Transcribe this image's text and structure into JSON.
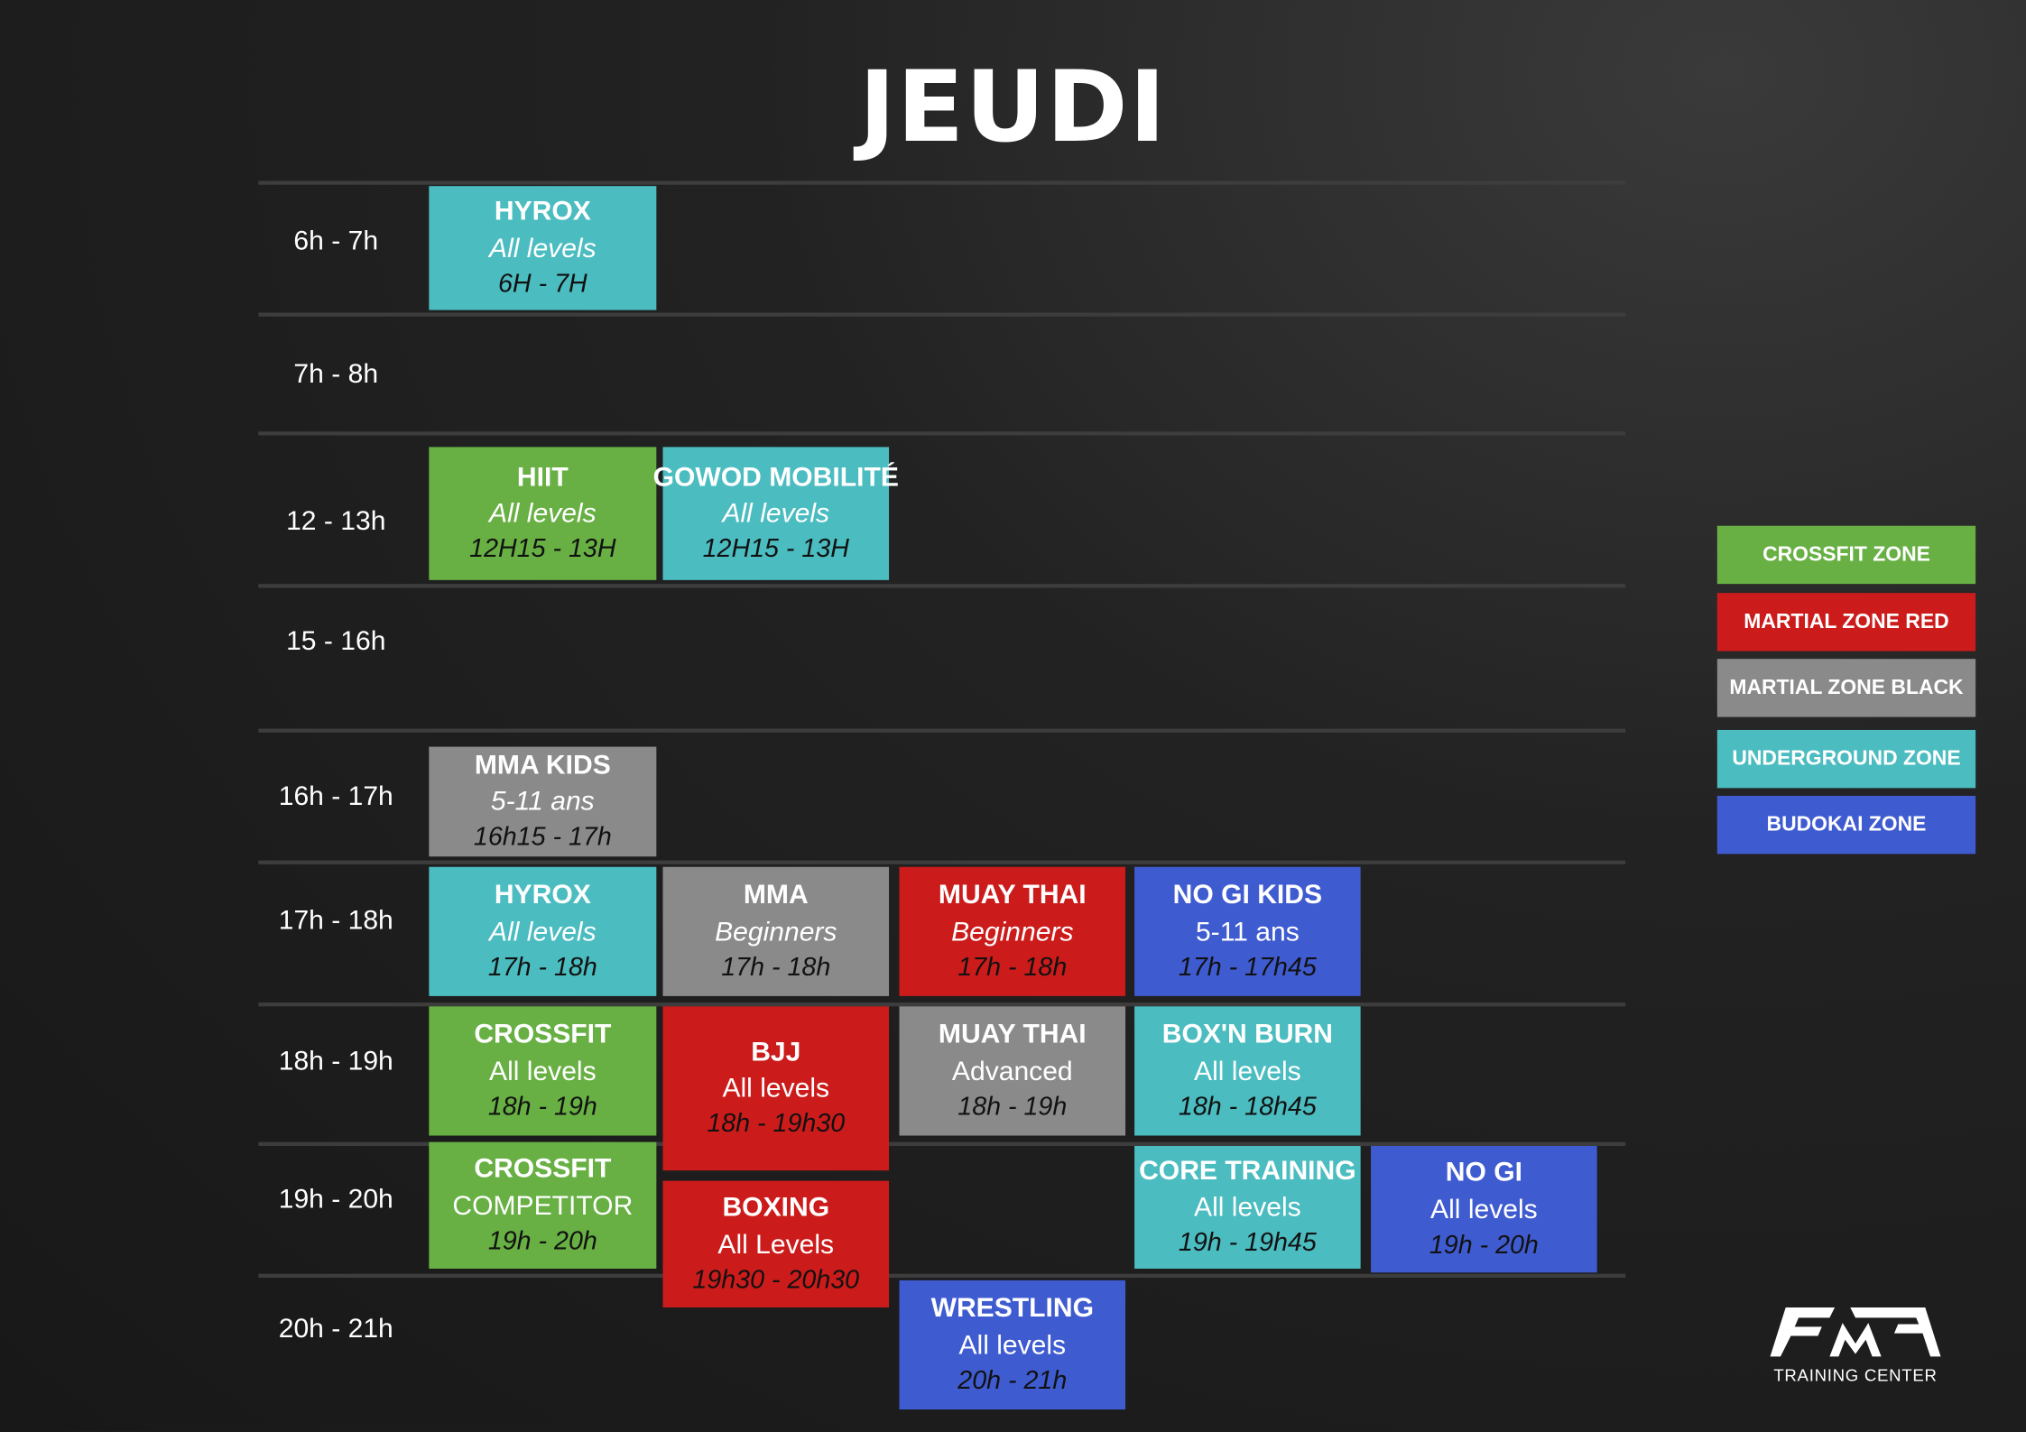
{
  "title": "JEUDI",
  "colors": {
    "crossfit": "#68b044",
    "red": "#cc1b1b",
    "black": "#8a8a8a",
    "underground": "#4bbcc0",
    "budokai": "#3f5bd0"
  },
  "rows": [
    "6h - 7h",
    "7h - 8h",
    "12 - 13h",
    "15 - 16h",
    "16h - 17h",
    "17h - 18h",
    "18h - 19h",
    "19h - 20h",
    "20h - 21h"
  ],
  "sessions": [
    {
      "name": "HYROX",
      "level": "All levels",
      "time": "6H - 7H",
      "zone": "underground",
      "level_italic": true
    },
    {
      "name": "HIIT",
      "level": "All levels",
      "time": "12H15 - 13H",
      "zone": "crossfit",
      "level_italic": true
    },
    {
      "name": "GOWOD MOBILITÉ",
      "level": "All levels",
      "time": "12H15 - 13H",
      "zone": "underground",
      "level_italic": true
    },
    {
      "name": "MMA KIDS",
      "level": "5-11 ans",
      "time": "16h15 - 17h",
      "zone": "black",
      "level_italic": true
    },
    {
      "name": "HYROX",
      "level": "All levels",
      "time": "17h - 18h",
      "zone": "underground",
      "level_italic": true
    },
    {
      "name": "MMA",
      "level": "Beginners",
      "time": "17h - 18h",
      "zone": "black",
      "level_italic": true
    },
    {
      "name": "MUAY THAI",
      "level": "Beginners",
      "time": "17h - 18h",
      "zone": "red",
      "level_italic": true
    },
    {
      "name": "NO GI KIDS",
      "level": "5-11 ans",
      "time": "17h - 17h45",
      "zone": "budokai",
      "level_italic": false
    },
    {
      "name": "CROSSFIT",
      "level": "All levels",
      "time": "18h - 19h",
      "zone": "crossfit",
      "level_italic": false
    },
    {
      "name": "BJJ",
      "level": "All levels",
      "time": "18h - 19h30",
      "zone": "red",
      "level_italic": false
    },
    {
      "name": "MUAY THAI",
      "level": "Advanced",
      "time": "18h - 19h",
      "zone": "black",
      "level_italic": false
    },
    {
      "name": "BOX'N BURN",
      "level": "All levels",
      "time": "18h - 18h45",
      "zone": "underground",
      "level_italic": false
    },
    {
      "name": "CROSSFIT",
      "level": "COMPETITOR",
      "time": "19h - 20h",
      "zone": "crossfit",
      "level_italic": false
    },
    {
      "name": "BOXING",
      "level": "All Levels",
      "time": "19h30 - 20h30",
      "zone": "red",
      "level_italic": false
    },
    {
      "name": "CORE TRAINING",
      "level": "All levels",
      "time": "19h - 19h45",
      "zone": "underground",
      "level_italic": false
    },
    {
      "name": "NO GI",
      "level": "All levels",
      "time": "19h - 20h",
      "zone": "budokai",
      "level_italic": false
    },
    {
      "name": "WRESTLING",
      "level": "All levels",
      "time": "20h - 21h",
      "zone": "budokai",
      "level_italic": false
    }
  ],
  "legend": [
    {
      "label": "CROSSFIT ZONE",
      "zone": "crossfit"
    },
    {
      "label": "MARTIAL ZONE RED",
      "zone": "red"
    },
    {
      "label": "MARTIAL ZONE BLACK",
      "zone": "black"
    },
    {
      "label": "UNDERGROUND ZONE",
      "zone": "underground"
    },
    {
      "label": "BUDOKAI ZONE",
      "zone": "budokai"
    }
  ],
  "logo": {
    "mark": "FMA",
    "subtitle": "TRAINING CENTER"
  }
}
